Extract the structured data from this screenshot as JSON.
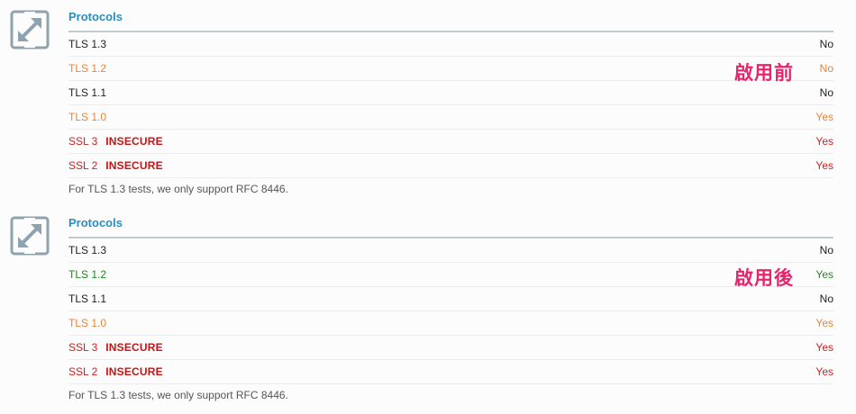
{
  "sections": [
    {
      "title": "Protocols",
      "annotation": "啟用前",
      "rows": [
        {
          "name": "TLS 1.3",
          "badge": "",
          "value": "No",
          "color": "#1e1e1e"
        },
        {
          "name": "TLS 1.2",
          "badge": "",
          "value": "No",
          "color": "#e8843a"
        },
        {
          "name": "TLS 1.1",
          "badge": "",
          "value": "No",
          "color": "#1e1e1e"
        },
        {
          "name": "TLS 1.0",
          "badge": "",
          "value": "Yes",
          "color": "#e8843a"
        },
        {
          "name": "SSL 3",
          "badge": "INSECURE",
          "value": "Yes",
          "color": "#d11e1e"
        },
        {
          "name": "SSL 2",
          "badge": "INSECURE",
          "value": "Yes",
          "color": "#d11e1e"
        }
      ],
      "footnote": "For TLS 1.3 tests, we only support RFC 8446."
    },
    {
      "title": "Protocols",
      "annotation": "啟用後",
      "rows": [
        {
          "name": "TLS 1.3",
          "badge": "",
          "value": "No",
          "color": "#1e1e1e"
        },
        {
          "name": "TLS 1.2",
          "badge": "",
          "value": "Yes",
          "color": "#1f8a1f"
        },
        {
          "name": "TLS 1.1",
          "badge": "",
          "value": "No",
          "color": "#1e1e1e"
        },
        {
          "name": "TLS 1.0",
          "badge": "",
          "value": "Yes",
          "color": "#e8843a"
        },
        {
          "name": "SSL 3",
          "badge": "INSECURE",
          "value": "Yes",
          "color": "#d11e1e"
        },
        {
          "name": "SSL 2",
          "badge": "INSECURE",
          "value": "Yes",
          "color": "#d11e1e"
        }
      ],
      "footnote": "For TLS 1.3 tests, we only support RFC 8446."
    }
  ],
  "icons": {
    "expand": "expand-arrows-icon"
  },
  "colors": {
    "title": "#2a8fbd",
    "rule": "#bfcbd1",
    "annotation": "#e8256b",
    "insecure_badge": "#c81414"
  }
}
